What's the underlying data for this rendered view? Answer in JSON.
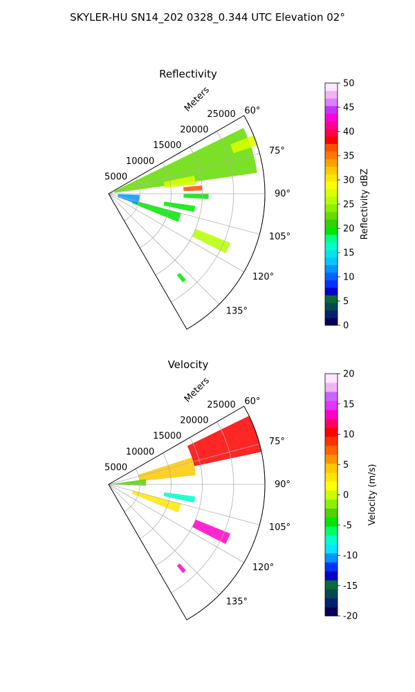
{
  "suptitle": "SKYLER-HU  SN14_202  0328_0.344 UTC Elevation 02°",
  "colors": {
    "grid": "#b0b0b0",
    "frame": "#000000",
    "reflectivity_scale": [
      "#08005c",
      "#00236e",
      "#004a50",
      "#0a6a3a",
      "#0000c8",
      "#0032ff",
      "#0064ff",
      "#0096ff",
      "#00c8ff",
      "#00e6e6",
      "#00ffc8",
      "#00ff8c",
      "#00e600",
      "#32d200",
      "#64dc00",
      "#8cf000",
      "#b4ff00",
      "#dcff00",
      "#ffff00",
      "#ffe600",
      "#ffc800",
      "#ffa000",
      "#ff7800",
      "#ff5000",
      "#ff0000",
      "#ff0050",
      "#ff0096",
      "#ff00dc",
      "#c832ff",
      "#dc82ff",
      "#f0b4f0",
      "#ffe6ff"
    ],
    "velocity_scale": [
      "#08005c",
      "#00236e",
      "#004a50",
      "#0a6a3a",
      "#0000c8",
      "#0032ff",
      "#0096ff",
      "#00e6ff",
      "#00ffc8",
      "#00ff64",
      "#00e600",
      "#50d200",
      "#8cf000",
      "#c8ff00",
      "#ffff00",
      "#ffe600",
      "#ffc800",
      "#ff9600",
      "#ff6400",
      "#ff3200",
      "#ff0000",
      "#ff0064",
      "#ff00c8",
      "#e632ff",
      "#c864ff",
      "#f0b4f0",
      "#ffe6ff"
    ]
  },
  "chart_data": [
    {
      "type": "polar-sector",
      "title": "Reflectivity",
      "radial_label": "Meters",
      "radial_ticks": [
        5000,
        10000,
        15000,
        20000,
        25000
      ],
      "radial_max": 25000,
      "angle_ticks": [
        "60°",
        "75°",
        "90°",
        "105°",
        "120°",
        "135°"
      ],
      "angle_range_deg": [
        60,
        150
      ],
      "colorbar": {
        "label": "Reflectivity dBZ",
        "min": 0,
        "max": 50,
        "ticks": [
          "0",
          "5",
          "10",
          "15",
          "20",
          "25",
          "30",
          "35",
          "40",
          "45",
          "50"
        ]
      },
      "echo_regions": [
        {
          "az": [
            64,
            82
          ],
          "range_m": [
            1000,
            24000
          ],
          "value": 22
        },
        {
          "az": [
            68,
            72
          ],
          "range_m": [
            21000,
            25000
          ],
          "value": 28
        },
        {
          "az": [
            78,
            84
          ],
          "range_m": [
            9000,
            14000
          ],
          "value": 27
        },
        {
          "az": [
            85,
            88
          ],
          "range_m": [
            12000,
            15000
          ],
          "value": 37
        },
        {
          "az": [
            90,
            93
          ],
          "range_m": [
            12000,
            16000
          ],
          "value": 20
        },
        {
          "az": [
            98,
            102
          ],
          "range_m": [
            9000,
            14000
          ],
          "value": 19
        },
        {
          "az": [
            105,
            112
          ],
          "range_m": [
            4000,
            12000
          ],
          "value": 20
        },
        {
          "az": [
            112,
            117
          ],
          "range_m": [
            15000,
            21000
          ],
          "value": 26
        },
        {
          "az": [
            92,
            110
          ],
          "range_m": [
            1500,
            5000
          ],
          "value": 11
        },
        {
          "az": [
            138,
            140
          ],
          "range_m": [
            17000,
            18500
          ],
          "value": 20
        }
      ]
    },
    {
      "type": "polar-sector",
      "title": "Velocity",
      "radial_label": "Meters",
      "radial_ticks": [
        5000,
        10000,
        15000,
        20000,
        25000
      ],
      "radial_max": 25000,
      "angle_ticks": [
        "60°",
        "75°",
        "90°",
        "105°",
        "120°",
        "135°"
      ],
      "angle_range_deg": [
        60,
        150
      ],
      "colorbar": {
        "label": "Velocity (m/s)",
        "min": -20,
        "max": 20,
        "ticks": [
          "-20",
          "-15",
          "-10",
          "-5",
          "0",
          "5",
          "10",
          "15",
          "20"
        ]
      },
      "echo_regions": [
        {
          "az": [
            64,
            78
          ],
          "range_m": [
            14000,
            25000
          ],
          "value": 10
        },
        {
          "az": [
            72,
            84
          ],
          "range_m": [
            5000,
            14000
          ],
          "value": 4
        },
        {
          "az": [
            82,
            92
          ],
          "range_m": [
            0,
            6000
          ],
          "value": -3
        },
        {
          "az": [
            98,
            102
          ],
          "range_m": [
            9000,
            14000
          ],
          "value": -8
        },
        {
          "az": [
            105,
            112
          ],
          "range_m": [
            4000,
            12000
          ],
          "value": 3
        },
        {
          "az": [
            112,
            117
          ],
          "range_m": [
            15000,
            21000
          ],
          "value": 14
        },
        {
          "az": [
            138,
            140
          ],
          "range_m": [
            17000,
            18500
          ],
          "value": 14
        }
      ]
    }
  ]
}
